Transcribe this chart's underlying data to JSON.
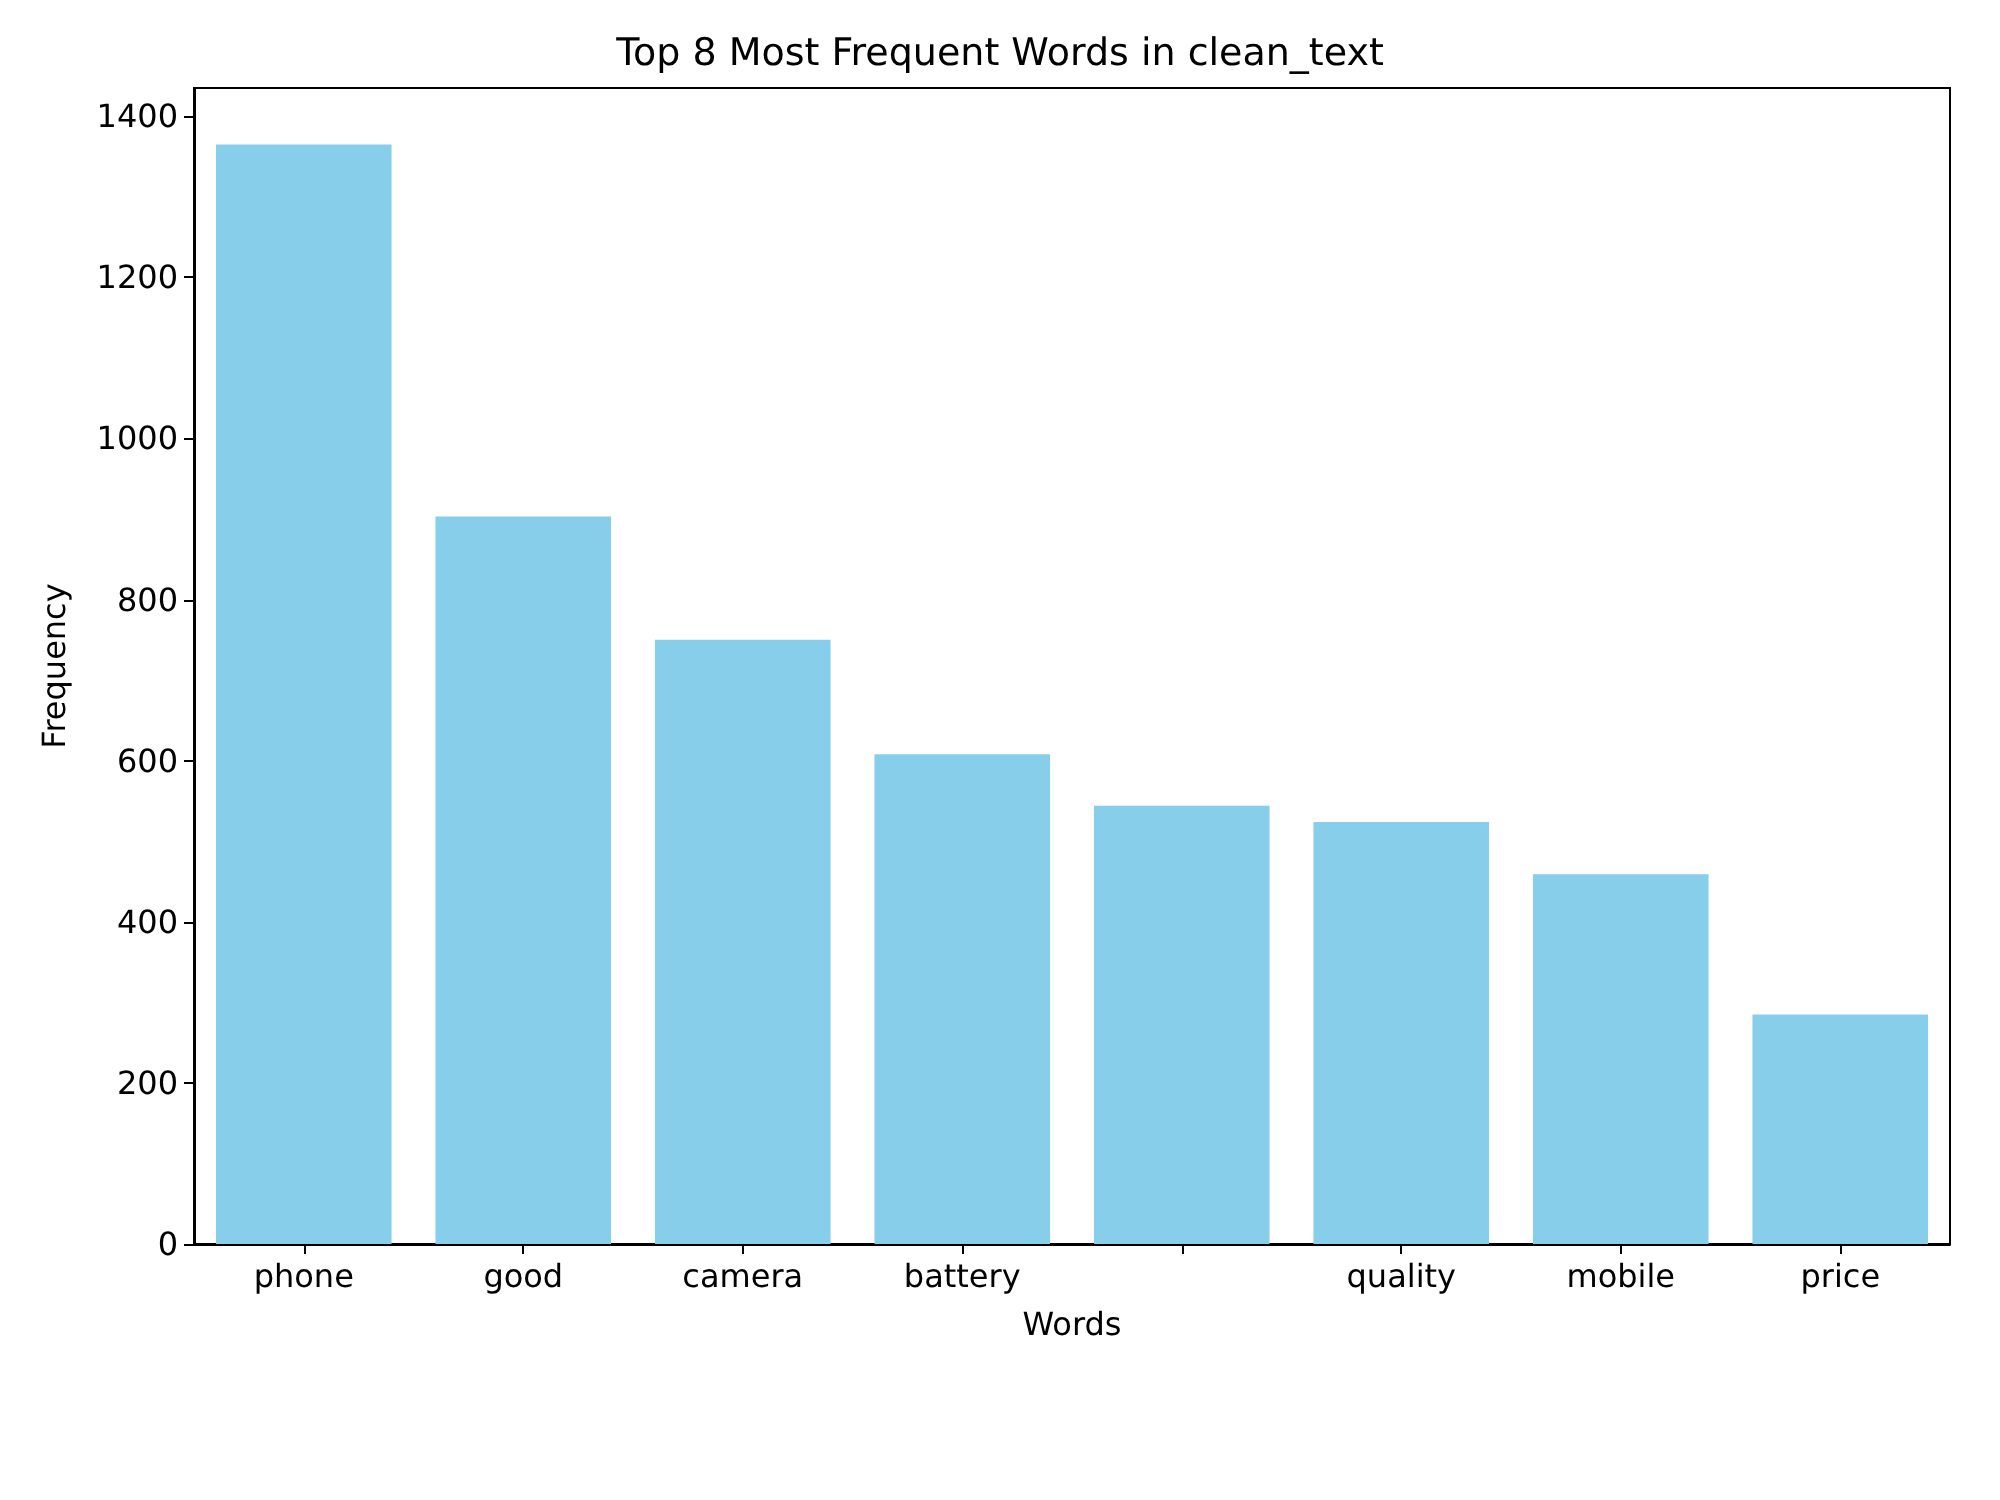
{
  "chart_data": {
    "type": "bar",
    "title": "Top 8 Most Frequent Words in clean_text",
    "xlabel": "Words",
    "ylabel": "Frequency",
    "categories": [
      "phone",
      "good",
      "camera",
      "battery",
      null,
      "quality",
      "mobile",
      "price"
    ],
    "values": [
      1365,
      903,
      750,
      608,
      544,
      524,
      459,
      285
    ],
    "color": "#87ceeb",
    "ylim": [
      0,
      1435
    ],
    "yticks": [
      0,
      200,
      400,
      600,
      800,
      1000,
      1200,
      1400
    ],
    "grid": false
  }
}
